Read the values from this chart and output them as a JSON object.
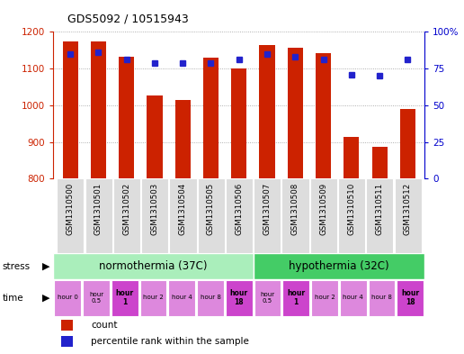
{
  "title": "GDS5092 / 10515943",
  "samples": [
    "GSM1310500",
    "GSM1310501",
    "GSM1310502",
    "GSM1310503",
    "GSM1310504",
    "GSM1310505",
    "GSM1310506",
    "GSM1310507",
    "GSM1310508",
    "GSM1310509",
    "GSM1310510",
    "GSM1310511",
    "GSM1310512"
  ],
  "bar_values": [
    1175,
    1173,
    1133,
    1027,
    1014,
    1130,
    1100,
    1163,
    1157,
    1143,
    915,
    886,
    990
  ],
  "dot_values": [
    85,
    86,
    81,
    79,
    79,
    79,
    81,
    85,
    83,
    81,
    71,
    70,
    81
  ],
  "bar_color": "#cc2200",
  "dot_color": "#2222cc",
  "ylim_left": [
    800,
    1200
  ],
  "ylim_right": [
    0,
    100
  ],
  "yticks_left": [
    800,
    900,
    1000,
    1100,
    1200
  ],
  "yticks_right": [
    0,
    25,
    50,
    75,
    100
  ],
  "ytick_labels_right": [
    "0",
    "25",
    "50",
    "75",
    "100%"
  ],
  "stress_labels": [
    "normothermia (37C)",
    "hypothermia (32C)"
  ],
  "stress_colors": [
    "#aaeebb",
    "#44cc66"
  ],
  "stress_n": [
    7,
    6
  ],
  "time_labels": [
    "hour 0",
    "hour\n0.5",
    "hour\n1",
    "hour 2",
    "hour 4",
    "hour 8",
    "hour\n18",
    "hour\n0.5",
    "hour\n1",
    "hour 2",
    "hour 4",
    "hour 8",
    "hour\n18"
  ],
  "time_bold": [
    2,
    6,
    8,
    12
  ],
  "time_color_light": "#dd88dd",
  "time_color_dark": "#cc44cc",
  "legend_bar_label": "count",
  "legend_dot_label": "percentile rank within the sample",
  "bar_base": 800,
  "grid_color": "#999999",
  "bg_color": "#ffffff",
  "sample_bg_color": "#dddddd",
  "axis_color_left": "#cc2200",
  "axis_color_right": "#0000cc"
}
